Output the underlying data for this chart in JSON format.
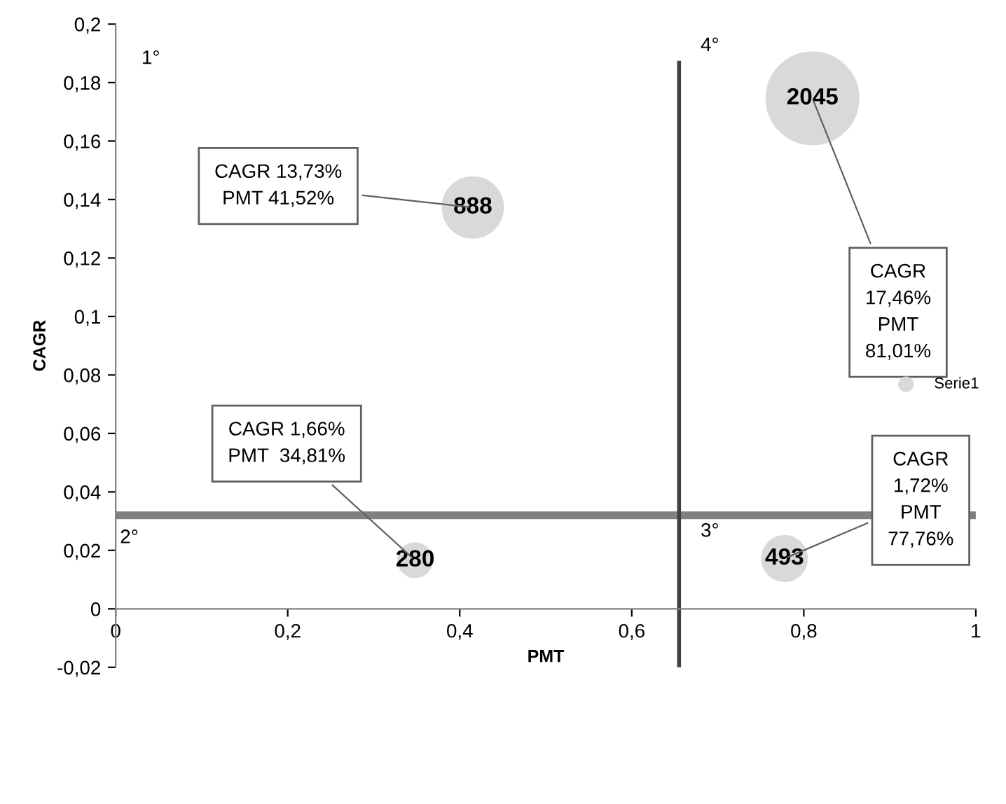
{
  "chart_data": {
    "type": "bubble",
    "xlabel": "PMT",
    "ylabel": "CAGR",
    "x": [
      0.4152,
      0.8101,
      0.3481,
      0.7776
    ],
    "series": [
      {
        "name": "Serie1",
        "color": "#d9d9d9",
        "values": [
          0.1373,
          0.1746,
          0.0166,
          0.0172
        ],
        "sizes": [
          888,
          2045,
          280,
          493
        ],
        "value_labels": [
          "888",
          "2045",
          "280",
          "493"
        ]
      }
    ],
    "xlim": [
      0,
      1
    ],
    "xticks": [
      0,
      {
        "value": 0.2,
        "label": "0,2"
      },
      {
        "value": 0.4,
        "label": "0,4"
      },
      {
        "value": 0.6,
        "label": "0,6"
      },
      {
        "value": 0.8,
        "label": "0,8"
      },
      1
    ],
    "ylim": [
      -0.02,
      0.2
    ],
    "yticks": [
      {
        "value": -0.02,
        "label": "-0,02"
      },
      0,
      {
        "value": 0.02,
        "label": "0,02"
      },
      {
        "value": 0.04,
        "label": "0,04"
      },
      {
        "value": 0.06,
        "label": "0,06"
      },
      {
        "value": 0.08,
        "label": "0,08"
      },
      {
        "value": 0.1,
        "label": "0,1"
      },
      {
        "value": 0.12,
        "label": "0,12"
      },
      {
        "value": 0.14,
        "label": "0,14"
      },
      {
        "value": 0.16,
        "label": "0,16"
      },
      {
        "value": 0.18,
        "label": "0,18"
      },
      {
        "value": 0.2,
        "label": "0,2"
      }
    ],
    "ref_lines": [
      {
        "axis": "y",
        "value": 0.032,
        "color": "#808080"
      },
      {
        "axis": "x",
        "value": 0.655,
        "color": "#404040"
      }
    ],
    "annotations": [
      {
        "text": "CAGR 13,73%\nPMT 41,52%",
        "x": 0.4152,
        "y": 0.1373
      },
      {
        "text": "CAGR\n17,46%\nPMT\n81,01%",
        "x": 0.8101,
        "y": 0.1746
      },
      {
        "text": "CAGR 1,66%\nPMT  34,81%",
        "x": 0.3481,
        "y": 0.0166
      },
      {
        "text": "CAGR\n1,72%\nPMT\n77,76%",
        "x": 0.7776,
        "y": 0.0172
      },
      "1°",
      "2°",
      "3°",
      "4°"
    ],
    "legend": "right",
    "grid": false
  }
}
